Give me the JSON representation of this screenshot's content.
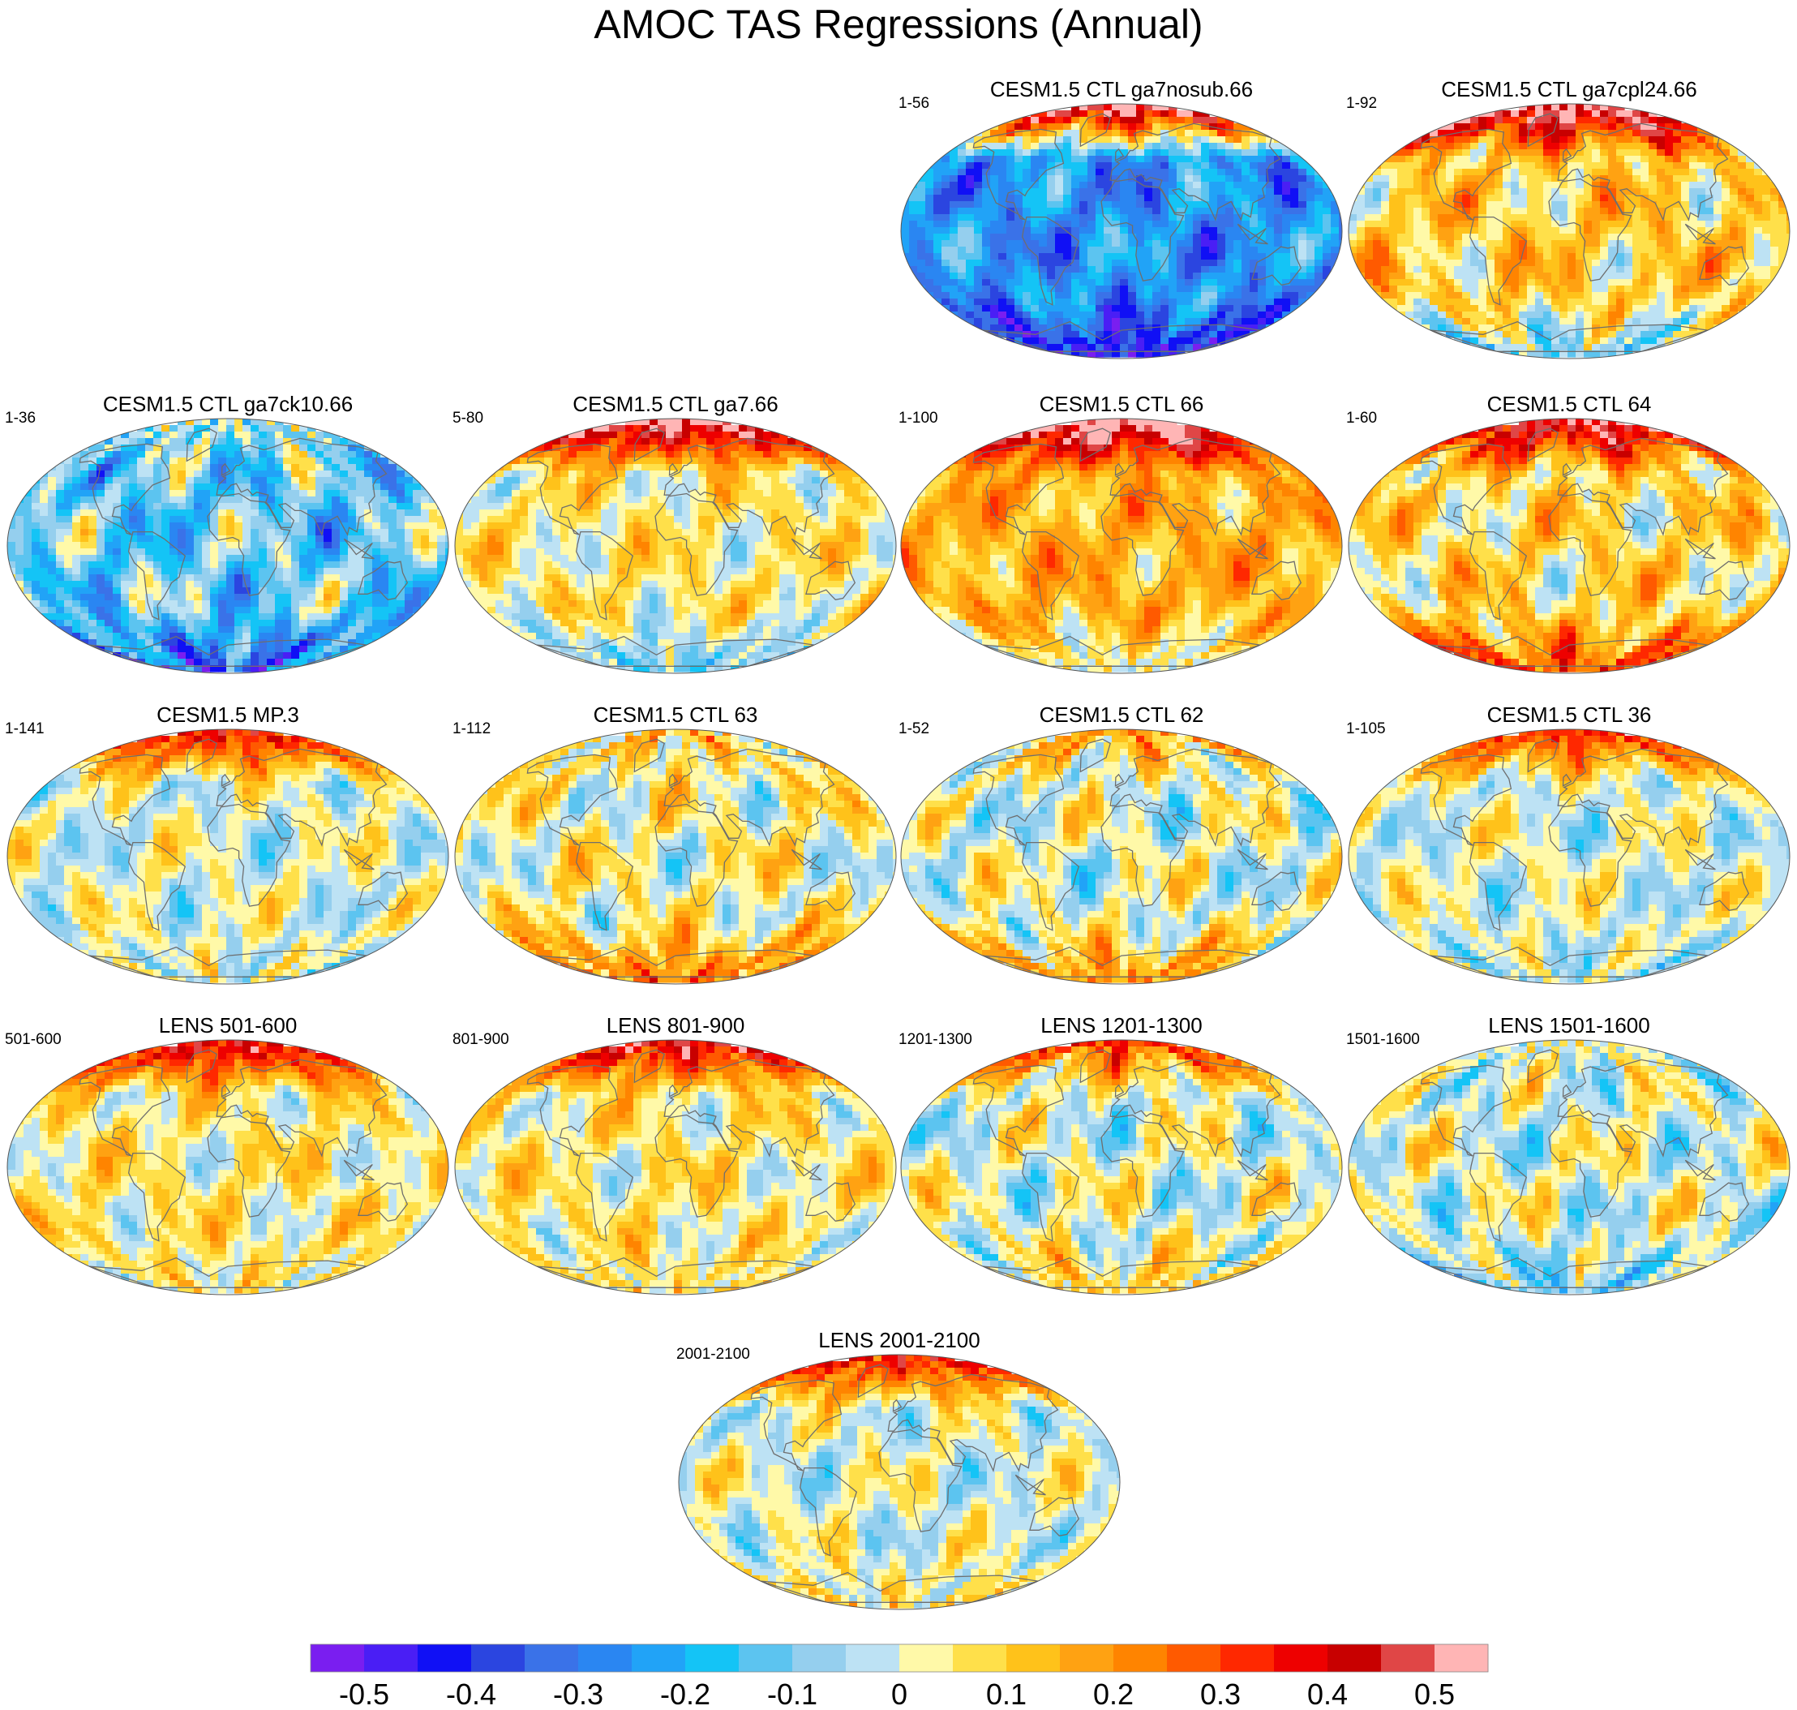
{
  "title": "AMOC TAS Regressions (Annual)",
  "panels": [
    {
      "title": "CESM1.5 CTL ga7nosub.66",
      "years": "1-56",
      "mean": -0.25,
      "north": 0.55,
      "south": -0.45,
      "amp": 0.12
    },
    {
      "title": "CESM1.5 CTL ga7cpl24.66",
      "years": "1-92",
      "mean": 0.1,
      "north": 0.55,
      "south": -0.1,
      "amp": 0.12
    },
    {
      "title": "CESM1.5 CTL ga7ck10.66",
      "years": "1-36",
      "mean": -0.12,
      "north": -0.05,
      "south": -0.35,
      "amp": 0.15
    },
    {
      "title": "CESM1.5 CTL ga7.66",
      "years": "5-80",
      "mean": 0.05,
      "north": 0.55,
      "south": -0.12,
      "amp": 0.1
    },
    {
      "title": "CESM1.5 CTL 66",
      "years": "1-100",
      "mean": 0.15,
      "north": 0.6,
      "south": 0.0,
      "amp": 0.1
    },
    {
      "title": "CESM1.5 CTL 64",
      "years": "1-60",
      "mean": 0.08,
      "north": 0.5,
      "south": 0.3,
      "amp": 0.12
    },
    {
      "title": "CESM1.5 MP.3",
      "years": "1-141",
      "mean": 0.0,
      "north": 0.4,
      "south": 0.0,
      "amp": 0.1
    },
    {
      "title": "CESM1.5 CTL 63",
      "years": "1-112",
      "mean": 0.03,
      "north": 0.1,
      "south": 0.25,
      "amp": 0.12
    },
    {
      "title": "CESM1.5 CTL 62",
      "years": "1-52",
      "mean": 0.0,
      "north": 0.15,
      "south": 0.2,
      "amp": 0.12
    },
    {
      "title": "CESM1.5 CTL 36",
      "years": "1-105",
      "mean": 0.0,
      "north": 0.35,
      "south": -0.03,
      "amp": 0.1
    },
    {
      "title": "LENS 501-600",
      "years": "501-600",
      "mean": 0.05,
      "north": 0.45,
      "south": 0.05,
      "amp": 0.1
    },
    {
      "title": "LENS 801-900",
      "years": "801-900",
      "mean": 0.05,
      "north": 0.45,
      "south": 0.05,
      "amp": 0.1
    },
    {
      "title": "LENS 1201-1300",
      "years": "1201-1300",
      "mean": 0.0,
      "north": 0.3,
      "south": 0.1,
      "amp": 0.12
    },
    {
      "title": "LENS 1501-1600",
      "years": "1501-1600",
      "mean": 0.0,
      "north": 0.0,
      "south": -0.1,
      "amp": 0.12
    },
    {
      "title": "LENS 2001-2100",
      "years": "2001-2100",
      "mean": 0.0,
      "north": 0.4,
      "south": 0.05,
      "amp": 0.1
    }
  ],
  "chart_data": {
    "type": "heatmap",
    "title": "AMOC TAS Regressions (Annual)",
    "projection": "Robinson-like global maps with coastlines",
    "colorbar": {
      "levels": [
        -0.55,
        -0.5,
        -0.45,
        -0.4,
        -0.35,
        -0.3,
        -0.25,
        -0.2,
        -0.15,
        -0.1,
        -0.05,
        0,
        0.05,
        0.1,
        0.15,
        0.2,
        0.25,
        0.3,
        0.35,
        0.4,
        0.45,
        0.5,
        0.55
      ],
      "colors": [
        "#7a1ef0",
        "#4a1ef5",
        "#1010f5",
        "#2b45e0",
        "#3a72e8",
        "#2a86f2",
        "#21a3f7",
        "#14c4f6",
        "#5cc4f0",
        "#95cfee",
        "#bde2f4",
        "#fff9a8",
        "#ffe04a",
        "#ffc21a",
        "#ffa212",
        "#ff8400",
        "#ff5a00",
        "#ff2800",
        "#ee0000",
        "#c80000",
        "#e04646",
        "#ffb5b5"
      ],
      "tick_values": [
        -0.5,
        -0.4,
        -0.3,
        -0.2,
        -0.1,
        0,
        0.1,
        0.2,
        0.3,
        0.4,
        0.5
      ],
      "tick_labels": [
        "-0.5",
        "-0.4",
        "-0.3",
        "-0.2",
        "-0.1",
        "0",
        "0.1",
        "0.2",
        "0.3",
        "0.4",
        "0.5"
      ]
    }
  }
}
